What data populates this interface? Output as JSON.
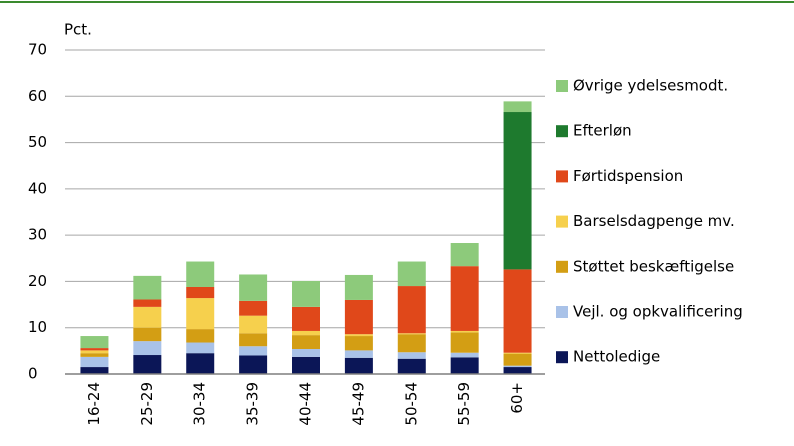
{
  "chart_data": {
    "type": "stacked_bar",
    "y_label": "Pct.",
    "categories": [
      "16-24",
      "25-29",
      "30-34",
      "35-39",
      "40-44",
      "45-49",
      "50-54",
      "55-59",
      "60+"
    ],
    "series": [
      {
        "name": "Nettoledige",
        "color": "#0b1657",
        "values": [
          1.5,
          4.1,
          4.5,
          4.0,
          3.7,
          3.5,
          3.3,
          3.6,
          1.5
        ]
      },
      {
        "name": "Vejl. og opkvalificering",
        "color": "#a9c2e8",
        "values": [
          2.2,
          3.0,
          2.3,
          2.0,
          1.7,
          1.6,
          1.4,
          1.0,
          0.3
        ]
      },
      {
        "name": "Støttet beskæftigelse",
        "color": "#d39e14",
        "values": [
          0.8,
          2.9,
          2.9,
          2.8,
          3.0,
          3.1,
          3.9,
          4.4,
          2.6
        ]
      },
      {
        "name": "Barselsdagpenge mv.",
        "color": "#f6d04d",
        "values": [
          0.6,
          4.5,
          6.7,
          3.8,
          0.9,
          0.4,
          0.2,
          0.3,
          0.2
        ]
      },
      {
        "name": "Førtidspension",
        "color": "#e0481a",
        "values": [
          0.5,
          1.6,
          2.4,
          3.2,
          5.2,
          7.4,
          10.2,
          14.0,
          18.0
        ]
      },
      {
        "name": "Efterløn",
        "color": "#1e7a2e",
        "values": [
          0,
          0,
          0,
          0,
          0,
          0,
          0,
          0,
          34.0
        ]
      },
      {
        "name": "Øvrige ydelsesmodt.",
        "color": "#8dca7b",
        "values": [
          2.6,
          5.1,
          5.5,
          5.7,
          5.6,
          5.4,
          5.3,
          5.0,
          2.3
        ]
      }
    ],
    "ylim": [
      0,
      70
    ],
    "yticks": [
      0,
      10,
      20,
      30,
      40,
      50,
      60,
      70
    ],
    "grid": true
  }
}
